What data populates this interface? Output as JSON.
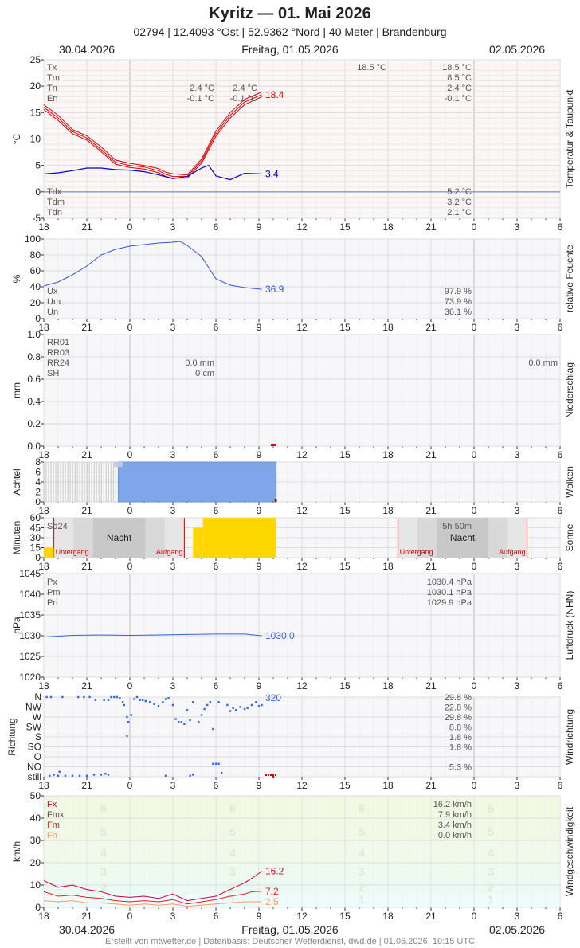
{
  "header": {
    "title": "Kyritz  —  01. Mai 2026",
    "subtitle": "02794  |  12.4093 °Ost  |  52.9362 °Nord  |  40 Meter  |  Brandenburg",
    "date_left": "30.04.2026",
    "date_center": "Freitag, 01.05.2026",
    "date_right": "02.05.2026"
  },
  "footer": "Erstellt von mtwetter.de | Datenbasis: Deutscher Wetterdienst, dwd.de | 01.05.2026, 10:15 UTC",
  "colors": {
    "temp": "#dd0000",
    "dew": "#0000cc",
    "hum": "#3355dd",
    "pres": "#3366dd",
    "cloud_fill": "#7ea6e8",
    "sun": "#ffd700",
    "wind_max": "#cc0044",
    "wind_mean": "#dd2222",
    "wind_min": "#ff9966",
    "dir": "#3366ee"
  },
  "chart_data": [
    {
      "id": "temp",
      "type": "line",
      "title": "Temperatur & Taupunkt",
      "ylabel": "°C",
      "ylim": [
        -5,
        25
      ],
      "yticks": [
        -5,
        0,
        5,
        10,
        15,
        20,
        25
      ],
      "x_hours": [
        18,
        21,
        0,
        3,
        6,
        9,
        12,
        15,
        18,
        21,
        0,
        3,
        6
      ],
      "xlim_hours": [
        0,
        36
      ],
      "series": [
        {
          "name": "Tx",
          "x": [
            0,
            1,
            2,
            3,
            4,
            5,
            6,
            7,
            8,
            8.5,
            9,
            10,
            11,
            12,
            13,
            14,
            15.2
          ],
          "y": [
            16.5,
            14.5,
            11.8,
            10.6,
            8.5,
            6,
            5.4,
            5,
            4.4,
            3.7,
            3.4,
            3.2,
            6.2,
            11.5,
            15,
            17.5,
            18.9
          ]
        },
        {
          "name": "Tm",
          "x": [
            0,
            1,
            2,
            3,
            4,
            5,
            6,
            7,
            8,
            8.5,
            9,
            10,
            11,
            12,
            13,
            14,
            15.2
          ],
          "y": [
            16,
            14,
            11.4,
            10.2,
            8,
            5.6,
            5,
            4.7,
            4,
            3.3,
            2.9,
            2.9,
            5.8,
            11,
            14.5,
            17,
            18.4
          ]
        },
        {
          "name": "Tn",
          "x": [
            0,
            1,
            2,
            3,
            4,
            5,
            6,
            7,
            8,
            8.5,
            9,
            10,
            11,
            12,
            13,
            14,
            15.2
          ],
          "y": [
            15.6,
            13.5,
            11,
            9.8,
            7.6,
            5.2,
            4.6,
            4.3,
            3.6,
            2.9,
            2.6,
            2.6,
            5.4,
            10.5,
            14,
            16.5,
            18
          ]
        },
        {
          "name": "Tdm",
          "x": [
            0,
            1,
            2,
            3,
            4,
            5,
            6,
            7,
            8,
            9,
            10,
            11,
            11.5,
            12,
            13,
            14,
            15.2
          ],
          "y": [
            3.4,
            3.6,
            4,
            4.5,
            4.5,
            4.2,
            4.1,
            3.8,
            3.2,
            2.5,
            2.9,
            4.5,
            5,
            3,
            2.3,
            3.5,
            3.4
          ]
        }
      ],
      "end_labels": {
        "temp": "18.4",
        "dew": "3.4"
      },
      "stats_top": {
        "labels": [
          "Tx",
          "Tm",
          "Tn",
          "En"
        ],
        "today": [
          "",
          "",
          "2.4 °C",
          "-0.1 °C"
        ],
        "today2": [
          "",
          "",
          "2.4 °C",
          "-0.1 °C"
        ],
        "tomorrow_mid": [
          "18.5 °C",
          "",
          "",
          ""
        ],
        "tomorrow": [
          "18.5 °C",
          "8.5 °C",
          "2.4 °C",
          "-0.1 °C"
        ]
      },
      "stats_bottom": {
        "labels": [
          "Tdx",
          "Tdm",
          "Tdn"
        ],
        "tomorrow": [
          "5.2 °C",
          "3.2 °C",
          "2.1 °C"
        ]
      }
    },
    {
      "id": "hum",
      "type": "line",
      "title": "relative Feuchte",
      "ylabel": "%",
      "ylim": [
        0,
        100
      ],
      "yticks": [
        0,
        20,
        40,
        60,
        80,
        100
      ],
      "series": [
        {
          "name": "Um",
          "x": [
            0,
            1,
            2,
            3,
            4,
            5,
            6,
            7,
            8,
            9,
            9.5,
            10,
            11,
            12,
            13,
            14,
            15.2
          ],
          "y": [
            41,
            46,
            55,
            66,
            80,
            87,
            91,
            93,
            95,
            96,
            97,
            92,
            78,
            50,
            42,
            39,
            36.9
          ]
        }
      ],
      "end_label": "36.9",
      "stats": {
        "labels": [
          "Ux",
          "Um",
          "Un"
        ],
        "values": [
          "97.9 %",
          "73.9 %",
          "36.1 %"
        ]
      }
    },
    {
      "id": "precip",
      "type": "bar",
      "title": "Niederschlag",
      "ylabel": "mm",
      "ylim": [
        0,
        1.0
      ],
      "yticks": [
        "0.0",
        "0.2",
        "0.4",
        "0.6",
        "0.8",
        "1.0"
      ],
      "stats": {
        "labels": [
          "RR01",
          "RR03",
          "RR24",
          "SH"
        ],
        "today": [
          "",
          "",
          "0.0 mm",
          "0 cm"
        ],
        "tomorrow": [
          "",
          "",
          "0.0 mm",
          ""
        ]
      }
    },
    {
      "id": "cloud",
      "type": "bar",
      "title": "Wolken",
      "ylabel": "Achtel",
      "ylim": [
        0,
        8
      ],
      "yticks": [
        0,
        2,
        4,
        6,
        8
      ],
      "overcast_from_hour": 5.2,
      "last_hour": 16.2,
      "values_octas": 8
    },
    {
      "id": "sun",
      "type": "bar",
      "title": "Sonne",
      "ylabel": "Minuten",
      "ylim": [
        0,
        60
      ],
      "yticks": [
        0,
        15,
        30,
        45,
        60
      ],
      "labels": {
        "sd": "Sd24",
        "night": "Nacht",
        "sunset": "Untergang",
        "sunrise": "Aufgang",
        "total": "5h 50m"
      },
      "sunset_hours": [
        0.7,
        24.7
      ],
      "sunrise_hours": [
        9.8,
        33.7
      ],
      "bars": [
        {
          "x0": 0,
          "x1": 0.7,
          "min": 15
        },
        {
          "x0": 10.4,
          "x1": 11.1,
          "min": 45
        },
        {
          "x0": 11.1,
          "x1": 16.2,
          "min": 60
        }
      ]
    },
    {
      "id": "pres",
      "type": "line",
      "title": "Luftdruck (NHN)",
      "ylabel": "hPa",
      "ylim": [
        1020,
        1045
      ],
      "yticks": [
        1020,
        1025,
        1030,
        1035,
        1040,
        1045
      ],
      "series": [
        {
          "name": "Pm",
          "x": [
            0,
            2,
            4,
            6,
            8,
            10,
            12,
            14,
            15.2
          ],
          "y": [
            1029.7,
            1030.1,
            1030.2,
            1030.1,
            1030.2,
            1030.3,
            1030.4,
            1030.4,
            1030.0
          ]
        }
      ],
      "end_label": "1030.0",
      "stats": {
        "labels": [
          "Px",
          "Pm",
          "Pn"
        ],
        "values": [
          "1030.4 hPa",
          "1030.1 hPa",
          "1029.9 hPa"
        ]
      }
    },
    {
      "id": "dir",
      "type": "scatter",
      "title": "Windrichtung",
      "ylabel": "Richtung",
      "categories": [
        "N",
        "NW",
        "W",
        "SW",
        "S",
        "SO",
        "O",
        "NO",
        "still"
      ],
      "end_label": "320",
      "stats": [
        "29.8 %",
        "22.8 %",
        "29.8 %",
        "8.8 %",
        "1.8 %",
        "1.8 %",
        "",
        "5.3 %",
        ""
      ],
      "points": [
        [
          0.2,
          8
        ],
        [
          0.5,
          8
        ],
        [
          1.3,
          8
        ],
        [
          2.4,
          8
        ],
        [
          2.8,
          8
        ],
        [
          3.2,
          8
        ],
        [
          3.6,
          7.7
        ],
        [
          4.2,
          7.7
        ],
        [
          4.5,
          7.7
        ],
        [
          4.7,
          8
        ],
        [
          4.9,
          8
        ],
        [
          5.1,
          8
        ],
        [
          5.3,
          7.9
        ],
        [
          5.5,
          7.5
        ],
        [
          5.6,
          7.2
        ],
        [
          5.8,
          6
        ],
        [
          5.9,
          5.5
        ],
        [
          6.1,
          6.2
        ],
        [
          6.3,
          7.8
        ],
        [
          6.5,
          8
        ],
        [
          6.7,
          7.7
        ],
        [
          6.9,
          7.7
        ],
        [
          7.1,
          7.6
        ],
        [
          7.4,
          7.5
        ],
        [
          7.7,
          7.3
        ],
        [
          8,
          7.1
        ],
        [
          8.3,
          7.5
        ],
        [
          8.5,
          7.8
        ],
        [
          8.7,
          7.9
        ],
        [
          9.0,
          7.2
        ],
        [
          9.2,
          5.8
        ],
        [
          9.4,
          5.5
        ],
        [
          9.6,
          5.5
        ],
        [
          9.8,
          5.3
        ],
        [
          10.0,
          6.7
        ],
        [
          10.2,
          5.7
        ],
        [
          10.4,
          7.5
        ],
        [
          10.8,
          5.5
        ],
        [
          11.0,
          6.2
        ],
        [
          11.2,
          6.8
        ],
        [
          11.4,
          7.2
        ],
        [
          11.6,
          7.5
        ],
        [
          11.8,
          4.8
        ],
        [
          12.2,
          7.5
        ],
        [
          12.8,
          7.2
        ],
        [
          13.0,
          6.6
        ],
        [
          13.2,
          6.9
        ],
        [
          13.4,
          6.7
        ],
        [
          13.7,
          7.0
        ],
        [
          14.0,
          6.8
        ],
        [
          14.2,
          6.9
        ],
        [
          14.5,
          7.2
        ],
        [
          14.8,
          7.5
        ],
        [
          15.0,
          7.1
        ],
        [
          15.2,
          7.2
        ],
        [
          5.8,
          4.1
        ],
        [
          1.1,
          0.5
        ],
        [
          0.4,
          0.1
        ],
        [
          0.7,
          0.2
        ],
        [
          1.0,
          0.1
        ],
        [
          1.5,
          0.1
        ],
        [
          2.0,
          0.1
        ],
        [
          2.5,
          0.1
        ],
        [
          3.0,
          0.1
        ],
        [
          3.5,
          0.2
        ],
        [
          4.0,
          0.2
        ],
        [
          4.3,
          0.3
        ],
        [
          4.5,
          0.2
        ],
        [
          8.5,
          0.1
        ],
        [
          10.2,
          0.1
        ],
        [
          10.4,
          0.2
        ],
        [
          11.8,
          1.3
        ],
        [
          12.0,
          1.3
        ],
        [
          12.2,
          1.3
        ],
        [
          12.4,
          0.4
        ],
        [
          16,
          0
        ]
      ],
      "still_from_hour": 15.5
    },
    {
      "id": "wind",
      "type": "line",
      "title": "Windgeschwindigkeit",
      "ylabel": "km/h",
      "ylim": [
        0,
        50
      ],
      "yticks": [
        0,
        10,
        20,
        30,
        40,
        50
      ],
      "bft_levels": [
        1,
        2,
        3,
        4,
        5,
        6
      ],
      "series": [
        {
          "name": "Fx",
          "x": [
            0,
            1,
            2,
            3,
            4,
            5,
            6,
            7,
            8,
            9,
            10,
            11,
            12,
            13,
            14,
            14.5,
            15.2
          ],
          "y": [
            12,
            9,
            10,
            8,
            7,
            5,
            4.5,
            5,
            4,
            6,
            3,
            4,
            5,
            8,
            11,
            13,
            16.2
          ]
        },
        {
          "name": "Fm",
          "x": [
            0,
            1,
            2,
            3,
            4,
            5,
            6,
            7,
            8,
            9,
            10,
            11,
            12,
            13,
            14,
            14.5,
            15.2
          ],
          "y": [
            7,
            5,
            5.5,
            4.5,
            4,
            3,
            2.5,
            3,
            2.5,
            3.5,
            1.5,
            2.5,
            3.5,
            5,
            6,
            7,
            7.2
          ]
        },
        {
          "name": "Fn",
          "x": [
            0,
            1,
            2,
            3,
            4,
            5,
            6,
            7,
            8,
            9,
            10,
            11,
            12,
            13,
            14,
            14.5,
            15.2
          ],
          "y": [
            3,
            2.5,
            3,
            2,
            2,
            1.5,
            1,
            1.5,
            1,
            1.5,
            0.5,
            1,
            1.5,
            2,
            2.5,
            2.5,
            2.5
          ]
        }
      ],
      "end_labels": [
        "16.2",
        "7.2",
        "2.5"
      ],
      "stats": {
        "labels": [
          "Fx",
          "Fmx",
          "Fm",
          "Fn"
        ],
        "values": [
          "16.2 km/h",
          "7.9 km/h",
          "3.4 km/h",
          "0.0 km/h"
        ]
      }
    }
  ]
}
